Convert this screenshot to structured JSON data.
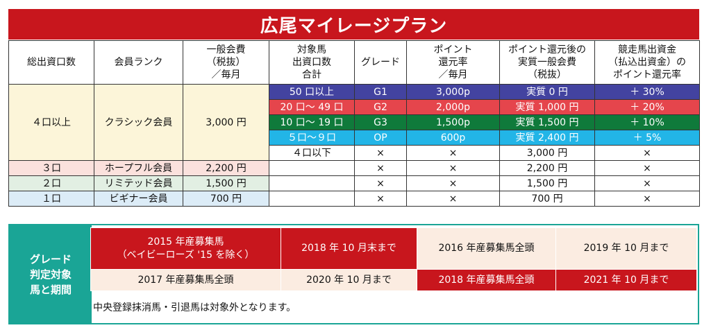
{
  "title": "広尾マイレージプラン",
  "headers": {
    "total_units": "総出資口数",
    "rank": "会員ランク",
    "fee": [
      "一般会費",
      "（税抜）",
      "／毎月"
    ],
    "target": [
      "対象馬",
      "出資口数",
      "合計"
    ],
    "grade": "グレード",
    "rate": [
      "ポイント",
      "還元率",
      "／毎月"
    ],
    "actual": [
      "ポイント還元後の",
      "実質一般会費",
      "（税抜）"
    ],
    "race": [
      "競走馬出資金",
      "（払込出資金）の",
      "ポイント還元率"
    ]
  },
  "classic": {
    "units": "４口以上",
    "rank": "クラシック会員",
    "fee": "3,000 円",
    "tiers": [
      {
        "target": "50 口以上",
        "grade": "G1",
        "rate": "3,000p",
        "actual": "実質 0 円",
        "race": "＋ 30%"
      },
      {
        "target": "20 口～ 49 口",
        "grade": "G2",
        "rate": "2,000p",
        "actual": "実質 1,000 円",
        "race": "＋ 20%"
      },
      {
        "target": "10 口～ 19 口",
        "grade": "G3",
        "rate": "1,500p",
        "actual": "実質 1,500 円",
        "race": "＋ 10%"
      },
      {
        "target": "５口～９口",
        "grade": "OP",
        "rate": "600p",
        "actual": "実質 2,400 円",
        "race": "＋ 5%"
      },
      {
        "target": "４口以下",
        "grade": "×",
        "rate": "×",
        "actual": "3,000 円",
        "race": "×"
      }
    ]
  },
  "others": [
    {
      "units": "３口",
      "rank": "ホープフル会員",
      "fee": "2,200 円",
      "grade": "×",
      "rate": "×",
      "actual": "2,200 円",
      "race": "×"
    },
    {
      "units": "２口",
      "rank": "リミテッド会員",
      "fee": "1,500 円",
      "grade": "×",
      "rate": "×",
      "actual": "1,500 円",
      "race": "×"
    },
    {
      "units": "１口",
      "rank": "ビギナー会員",
      "fee": "700 円",
      "grade": "×",
      "rate": "×",
      "actual": "700 円",
      "race": "×"
    }
  ],
  "grade_period": {
    "label": [
      "グレード",
      "判定対象",
      "馬と期間"
    ],
    "rows": [
      [
        {
          "text": [
            "2015 年産募集馬",
            "（ベイビーローズ '15 を除く）"
          ]
        },
        {
          "text": [
            "2018 年 10 月末まで"
          ]
        },
        {
          "text": [
            "2016 年産募集馬全頭"
          ]
        },
        {
          "text": [
            "2019 年 10 月まで"
          ]
        }
      ],
      [
        {
          "text": [
            "2017 年産募集馬全頭"
          ]
        },
        {
          "text": [
            "2020 年 10 月まで"
          ]
        },
        {
          "text": [
            "2018 年産募集馬全頭"
          ]
        },
        {
          "text": [
            "2021 年 10 月まで"
          ]
        }
      ]
    ],
    "note": "中央登録抹消馬・引退馬は対象外となります。"
  },
  "colors": {
    "title_red": "#c8161d",
    "g1": "#4343a0",
    "g2": "#e5454c",
    "g3": "#0f7a3b",
    "op": "#22b5e7",
    "teal": "#1aa596"
  }
}
